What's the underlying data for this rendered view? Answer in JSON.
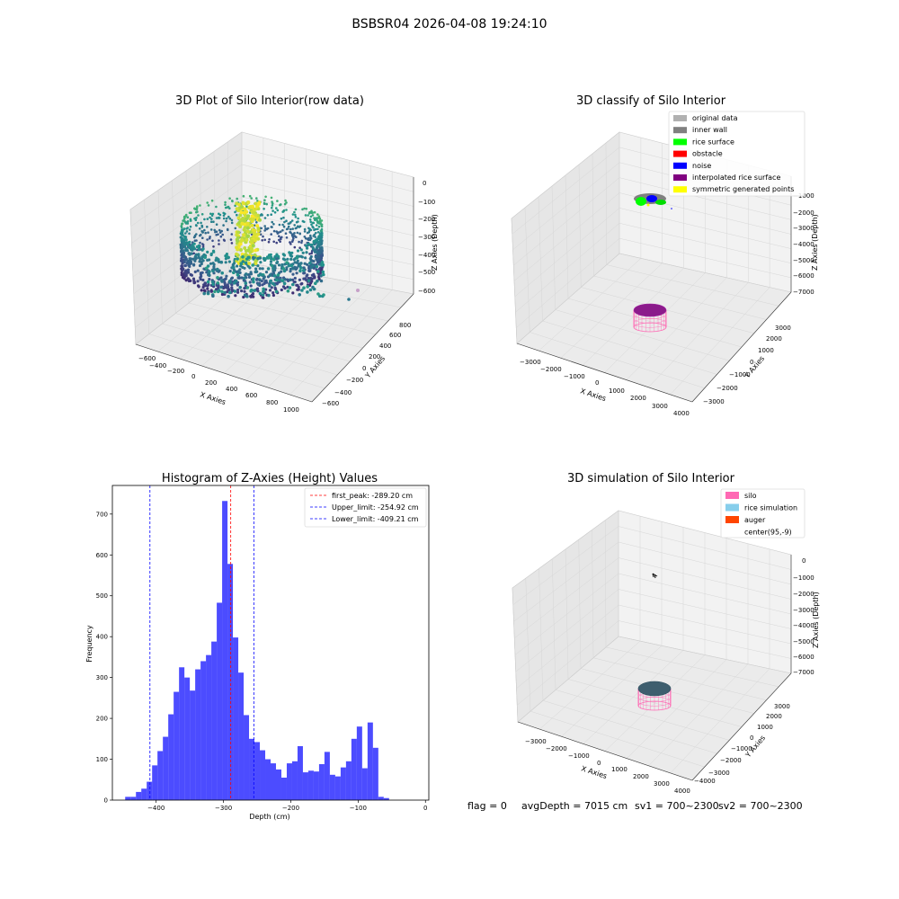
{
  "figure": {
    "suptitle": "BSBSR04 2026-04-08 19:24:10",
    "status": {
      "flag": "flag = 0",
      "avg_depth": "avgDepth = 7015 cm",
      "sv1": "sv1 = 700~2300",
      "sv2": "sv2 = 700~2300"
    }
  },
  "chart_data": [
    {
      "type": "scatter3d",
      "title": "3D Plot of Silo Interior(row data)",
      "xlabel": "X Axies",
      "ylabel": "Y Axies",
      "zlabel": "Z Axies (Depth)",
      "x_ticks": [
        "−600",
        "−400",
        "−200",
        "0",
        "200",
        "400",
        "600",
        "800",
        "1000"
      ],
      "y_ticks": [
        "−600",
        "−400",
        "−200",
        "0",
        "200",
        "400",
        "600",
        "800"
      ],
      "z_ticks": [
        "0",
        "−100",
        "−200",
        "−300",
        "−400",
        "−500",
        "−600"
      ],
      "xlim": [
        -600,
        1000
      ],
      "ylim": [
        -600,
        800
      ],
      "zlim": [
        -650,
        0
      ],
      "colormap": "viridis",
      "grid": true
    },
    {
      "type": "scatter3d",
      "title": "3D classify of Silo Interior",
      "xlabel": "X Axies",
      "ylabel": "Y Axies",
      "zlabel": "Z Axies (Depth)",
      "x_ticks": [
        "−3000",
        "−2000",
        "−1000",
        "0",
        "1000",
        "2000",
        "3000",
        "4000"
      ],
      "y_ticks": [
        "−3000",
        "−2000",
        "−1000",
        "0",
        "1000",
        "2000",
        "3000"
      ],
      "z_ticks": [
        "−1000",
        "−2000",
        "−3000",
        "−4000",
        "−5000",
        "−6000",
        "−7000"
      ],
      "legend": [
        {
          "label": "original data",
          "color": "#b0b0b0"
        },
        {
          "label": "inner wall",
          "color": "#808080"
        },
        {
          "label": "rice surface",
          "color": "#00ff00"
        },
        {
          "label": "obstacle",
          "color": "#ff0000"
        },
        {
          "label": "noise",
          "color": "#0000ff"
        },
        {
          "label": "interpolated rice surface",
          "color": "#800080"
        },
        {
          "label": "symmetric generated points",
          "color": "#ffff00"
        }
      ],
      "legend_position": "top-right",
      "grid": true
    },
    {
      "type": "bar",
      "title": "Histogram of Z-Axies (Height) Values",
      "xlabel": "Depth (cm)",
      "ylabel": "Frequency",
      "bar_color": "#0000ff",
      "bin_width": 8,
      "bins_start": [
        -446,
        -438,
        -430,
        -422,
        -414,
        -406,
        -398,
        -390,
        -382,
        -374,
        -366,
        -358,
        -350,
        -342,
        -334,
        -326,
        -318,
        -310,
        -302,
        -294,
        -286,
        -278,
        -270,
        -262,
        -254,
        -246,
        -238,
        -230,
        -222,
        -214,
        -206,
        -198,
        -190,
        -182,
        -174,
        -166,
        -158,
        -150,
        -142,
        -134,
        -126,
        -118,
        -110,
        -102,
        -94,
        -86,
        -78,
        -70,
        -62,
        -54,
        -46,
        -38,
        -30
      ],
      "values": [
        8,
        8,
        20,
        28,
        45,
        85,
        120,
        155,
        210,
        265,
        325,
        300,
        268,
        320,
        340,
        355,
        388,
        483,
        732,
        578,
        398,
        312,
        208,
        150,
        142,
        122,
        100,
        90,
        75,
        55,
        90,
        95,
        132,
        68,
        72,
        70,
        88,
        118,
        62,
        58,
        80,
        95,
        150,
        180,
        78,
        190,
        128,
        8,
        5,
        0,
        0,
        0,
        0
      ],
      "xlim": [
        -465,
        5
      ],
      "ylim": [
        0,
        770
      ],
      "x_ticks": [
        -400,
        -300,
        -200,
        -100,
        0
      ],
      "y_ticks": [
        0,
        100,
        200,
        300,
        400,
        500,
        600,
        700
      ],
      "x_tick_labels": [
        "−400",
        "−300",
        "−200",
        "−100",
        "0"
      ],
      "y_tick_labels": [
        "0",
        "100",
        "200",
        "300",
        "400",
        "500",
        "600",
        "700"
      ],
      "lines": [
        {
          "label": "first_peak: -289.20 cm",
          "x": -289.2,
          "color": "#ff0000"
        },
        {
          "label": "Upper_limit: -254.92 cm",
          "x": -254.92,
          "color": "#0000ff"
        },
        {
          "label": "Lower_limit: -409.21 cm",
          "x": -409.21,
          "color": "#0000ff"
        }
      ],
      "legend_position": "top-right"
    },
    {
      "type": "scatter3d",
      "title": "3D simulation of Silo Interior",
      "xlabel": "X Axies",
      "ylabel": "Y Axies",
      "zlabel": "Z Axies (Depth)",
      "x_ticks": [
        "−3000",
        "−2000",
        "−1000",
        "0",
        "1000",
        "2000",
        "3000",
        "4000"
      ],
      "y_ticks": [
        "−4000",
        "−3000",
        "−2000",
        "−1000",
        "0",
        "1000",
        "2000",
        "3000"
      ],
      "z_ticks": [
        "0",
        "−1000",
        "−2000",
        "−3000",
        "−4000",
        "−5000",
        "−6000",
        "−7000"
      ],
      "legend": [
        {
          "label": "silo",
          "color": "#ff69b4"
        },
        {
          "label": "rice simulation",
          "color": "#87ceeb"
        },
        {
          "label": "auger",
          "color": "#ff4500"
        },
        {
          "label": "center(95,-9)",
          "color": "none"
        }
      ],
      "legend_position": "top-right",
      "grid": true
    }
  ]
}
